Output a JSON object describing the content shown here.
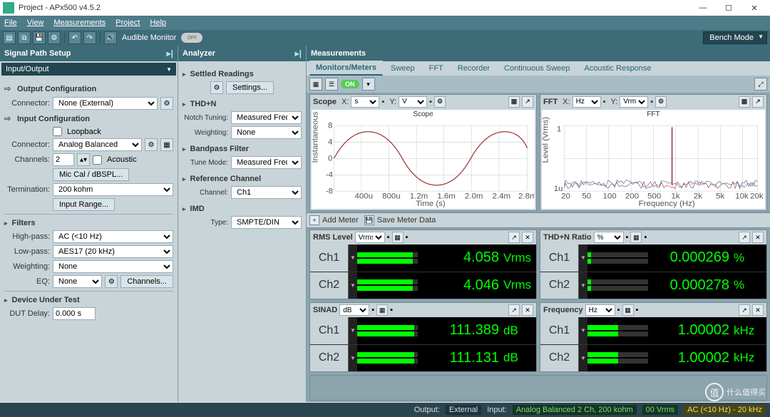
{
  "window": {
    "title": "Project - APx500 v4.5.2",
    "min": "—",
    "max": "☐",
    "close": "✕"
  },
  "menu": [
    "File",
    "View",
    "Measurements",
    "Project",
    "Help"
  ],
  "toolbar": {
    "audible_monitor": "Audible Monitor",
    "toggle": "OFF",
    "bench_mode": "Bench Mode"
  },
  "panels": {
    "signal": "Signal Path Setup",
    "analyzer": "Analyzer",
    "measurements": "Measurements"
  },
  "signal": {
    "io_header": "Input/Output",
    "out_cfg": "Output Configuration",
    "out_connector_lbl": "Connector:",
    "out_connector": "None (External)",
    "in_cfg": "Input Configuration",
    "loopback": "Loopback",
    "in_connector_lbl": "Connector:",
    "in_connector": "Analog Balanced",
    "channels_lbl": "Channels:",
    "channels": "2",
    "acoustic": "Acoustic",
    "miccal": "Mic Cal / dBSPL...",
    "term_lbl": "Termination:",
    "term": "200 kohm",
    "input_range": "Input Range...",
    "filters": "Filters",
    "hp_lbl": "High-pass:",
    "hp": "AC (<10 Hz)",
    "lp_lbl": "Low-pass:",
    "lp": "AES17 (20 kHz)",
    "wt_lbl": "Weighting:",
    "wt": "None",
    "eq_lbl": "EQ:",
    "eq": "None",
    "channels_btn": "Channels...",
    "dut": "Device Under Test",
    "dutdelay_lbl": "DUT Delay:",
    "dutdelay": "0.000 s"
  },
  "analyzer": {
    "settled": "Settled Readings",
    "settings": "Settings...",
    "thdn": "THD+N",
    "notch_lbl": "Notch Tuning:",
    "notch": "Measured Frequency",
    "wt_lbl": "Weighting:",
    "wt": "None",
    "bp": "Bandpass Filter",
    "tune_lbl": "Tune Mode:",
    "tune": "Measured Frequency",
    "ref": "Reference Channel",
    "ch_lbl": "Channel:",
    "ch": "Ch1",
    "imd": "IMD",
    "type_lbl": "Type:",
    "type": "SMPTE/DIN"
  },
  "tabs": [
    "Monitors/Meters",
    "Sweep",
    "FFT",
    "Recorder",
    "Continuous Sweep",
    "Acoustic Response"
  ],
  "meterbar": {
    "on": "ON",
    "add": "Add Meter",
    "save": "Save Meter Data"
  },
  "scope": {
    "title": "Scope",
    "x_lbl": "X:",
    "x_unit": "s",
    "y_lbl": "Y:",
    "y_unit": "V",
    "chart_title": "Scope",
    "xlabel": "Time (s)",
    "ylabel": "Instantaneous Level (V)",
    "xticks": [
      "400u",
      "800u",
      "1.2m",
      "1.6m",
      "2.0m",
      "2.4m",
      "2.8m"
    ],
    "yticks": [
      "-8",
      "-4",
      "0",
      "4",
      "8"
    ],
    "wave_color": "#a03838",
    "grid_color": "#bfcdd2",
    "bg": "#ffffff"
  },
  "fft": {
    "title": "FFT",
    "x_lbl": "X:",
    "x_unit": "Hz",
    "y_lbl": "Y:",
    "y_unit": "Vrms",
    "chart_title": "FFT",
    "xlabel": "Frequency (Hz)",
    "ylabel": "Level (Vrms)",
    "xticks": [
      "20",
      "50",
      "100",
      "200",
      "500",
      "1k",
      "2k",
      "5k",
      "10k",
      "20k"
    ],
    "yticks": [
      "1u",
      "1"
    ],
    "peak_x": 0.55,
    "trace1_color": "#a03838",
    "trace2_color": "#3860a0",
    "grid_color": "#bfcdd2",
    "bg": "#ffffff",
    "noise_floor_y": 0.78
  },
  "meters": [
    {
      "name": "RMS Level",
      "unit_sel": "Vrms",
      "ch": [
        {
          "lbl": "Ch1",
          "val": "4.058",
          "unit": "Vrms",
          "fill1": 92,
          "fill2": 92
        },
        {
          "lbl": "Ch2",
          "val": "4.046",
          "unit": "Vrms",
          "fill1": 92,
          "fill2": 92
        }
      ]
    },
    {
      "name": "THD+N Ratio",
      "unit_sel": "%",
      "ch": [
        {
          "lbl": "Ch1",
          "val": "0.000269",
          "unit": "%",
          "fill1": 6,
          "fill2": 6
        },
        {
          "lbl": "Ch2",
          "val": "0.000278",
          "unit": "%",
          "fill1": 6,
          "fill2": 6
        }
      ]
    },
    {
      "name": "SINAD",
      "unit_sel": "dB",
      "ch": [
        {
          "lbl": "Ch1",
          "val": "111.389",
          "unit": "dB",
          "fill1": 94,
          "fill2": 94
        },
        {
          "lbl": "Ch2",
          "val": "111.131",
          "unit": "dB",
          "fill1": 94,
          "fill2": 94
        }
      ]
    },
    {
      "name": "Frequency",
      "unit_sel": "Hz",
      "ch": [
        {
          "lbl": "Ch1",
          "val": "1.00002",
          "unit": "kHz",
          "fill1": 50,
          "fill2": 50
        },
        {
          "lbl": "Ch2",
          "val": "1.00002",
          "unit": "kHz",
          "fill1": 50,
          "fill2": 50
        }
      ]
    }
  ],
  "status": {
    "output": "Output:",
    "out_val": "External",
    "input": "Input:",
    "in_val": "Analog Balanced 2 Ch, 200 kohm",
    "range": "00 Vrms",
    "filter": "AC (<10 Hz) - 20 kHz"
  },
  "watermark": "什么值得买",
  "colors": {
    "green": "#00ff00",
    "panel": "#c8d4d8",
    "header": "#3d6b78"
  }
}
